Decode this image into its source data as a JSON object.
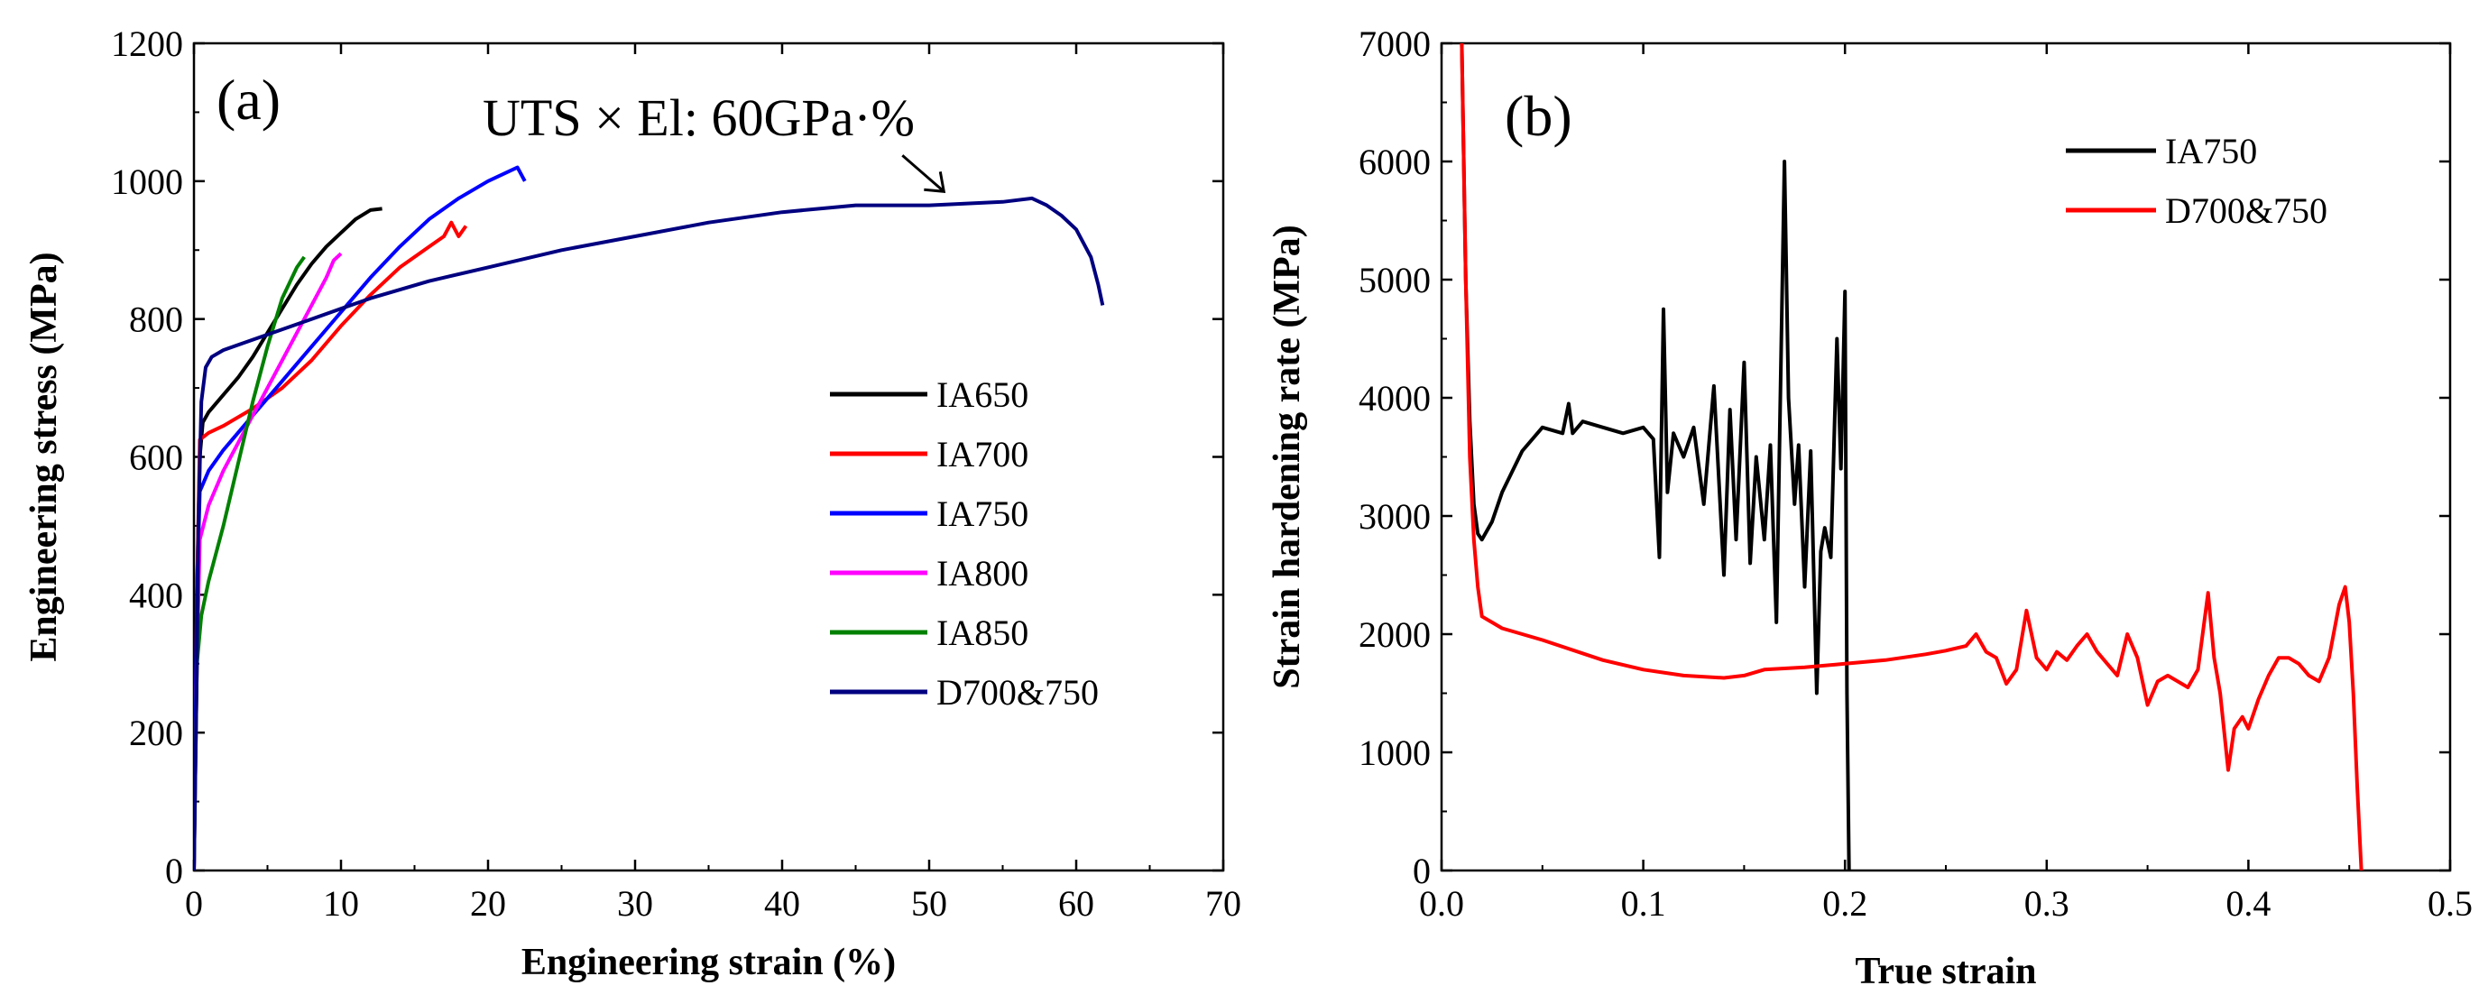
{
  "chart_data": [
    {
      "id": "a",
      "type": "line",
      "panel_label": "(a)",
      "xlabel": "Engineering strain (%)",
      "ylabel": "Engineering stress (MPa)",
      "xlim": [
        0,
        70
      ],
      "ylim": [
        0,
        1200
      ],
      "xticks": [
        0,
        10,
        20,
        30,
        40,
        50,
        60,
        70
      ],
      "yticks": [
        0,
        200,
        400,
        600,
        800,
        1000,
        1200
      ],
      "legend_position": "center-right",
      "annotation": {
        "text": "UTS × El: 60GPa·%",
        "points_to": [
          51,
          985
        ]
      },
      "series": [
        {
          "name": "IA650",
          "color": "#000000",
          "x": [
            0,
            0.2,
            0.4,
            0.6,
            1,
            2,
            3,
            4,
            5,
            6,
            7,
            8,
            9,
            10,
            11,
            12,
            12.8
          ],
          "y": [
            0,
            400,
            600,
            650,
            665,
            690,
            715,
            745,
            780,
            815,
            850,
            880,
            905,
            925,
            945,
            958,
            960
          ]
        },
        {
          "name": "IA700",
          "color": "#ff0000",
          "x": [
            0,
            0.2,
            0.4,
            1,
            2,
            4,
            6,
            8,
            10,
            12,
            14,
            16,
            17,
            17.5,
            18,
            18.5
          ],
          "y": [
            0,
            400,
            625,
            635,
            645,
            670,
            700,
            740,
            790,
            835,
            875,
            905,
            920,
            940,
            920,
            935
          ]
        },
        {
          "name": "IA750",
          "color": "#0000ff",
          "x": [
            0,
            0.2,
            0.4,
            1,
            2,
            4,
            6,
            8,
            10,
            12,
            14,
            16,
            18,
            20,
            21,
            22,
            22.5
          ],
          "y": [
            0,
            400,
            550,
            580,
            610,
            660,
            710,
            760,
            810,
            860,
            905,
            945,
            975,
            1000,
            1010,
            1020,
            1000
          ]
        },
        {
          "name": "IA800",
          "color": "#ff00ff",
          "x": [
            0,
            0.2,
            0.4,
            1,
            2,
            4,
            6,
            8,
            9,
            9.5,
            10
          ],
          "y": [
            0,
            300,
            480,
            530,
            580,
            660,
            740,
            820,
            860,
            885,
            895
          ]
        },
        {
          "name": "IA850",
          "color": "#008000",
          "x": [
            0,
            0.2,
            0.5,
            1,
            2,
            3,
            4,
            5,
            6,
            7,
            7.5
          ],
          "y": [
            0,
            300,
            370,
            420,
            500,
            590,
            680,
            760,
            830,
            875,
            890
          ]
        },
        {
          "name": "D700&750",
          "color": "#000080",
          "x": [
            0,
            0.2,
            0.3,
            0.5,
            0.8,
            1.2,
            2,
            4,
            8,
            12,
            16,
            20,
            25,
            30,
            35,
            40,
            45,
            50,
            55,
            57,
            58,
            59,
            60,
            61,
            61.5,
            61.8
          ],
          "y": [
            0,
            300,
            500,
            680,
            730,
            745,
            755,
            770,
            800,
            830,
            855,
            875,
            900,
            920,
            940,
            955,
            965,
            965,
            970,
            975,
            965,
            950,
            930,
            890,
            850,
            820
          ]
        }
      ]
    },
    {
      "id": "b",
      "type": "line",
      "panel_label": "(b)",
      "xlabel": "True strain",
      "ylabel": "Strain hardening rate (MPa)",
      "xlim": [
        0,
        0.5
      ],
      "ylim": [
        0,
        7000
      ],
      "xticks": [
        "0.0",
        "0.1",
        "0.2",
        "0.3",
        "0.4",
        "0.5"
      ],
      "xtick_values": [
        0,
        0.1,
        0.2,
        0.3,
        0.4,
        0.5
      ],
      "yticks": [
        0,
        1000,
        2000,
        3000,
        4000,
        5000,
        6000,
        7000
      ],
      "legend_position": "top-right",
      "series": [
        {
          "name": "IA750",
          "color": "#000000",
          "x": [
            0.01,
            0.012,
            0.014,
            0.016,
            0.018,
            0.02,
            0.025,
            0.03,
            0.04,
            0.05,
            0.06,
            0.063,
            0.065,
            0.07,
            0.08,
            0.09,
            0.1,
            0.105,
            0.108,
            0.11,
            0.112,
            0.115,
            0.12,
            0.125,
            0.13,
            0.135,
            0.14,
            0.143,
            0.146,
            0.15,
            0.153,
            0.156,
            0.16,
            0.163,
            0.166,
            0.17,
            0.172,
            0.175,
            0.177,
            0.18,
            0.183,
            0.186,
            0.188,
            0.19,
            0.193,
            0.196,
            0.198,
            0.2,
            0.201,
            0.202
          ],
          "y": [
            7000,
            5000,
            3800,
            3100,
            2850,
            2800,
            2950,
            3200,
            3550,
            3750,
            3700,
            3950,
            3700,
            3800,
            3750,
            3700,
            3750,
            3650,
            2650,
            4750,
            3200,
            3700,
            3500,
            3750,
            3100,
            4100,
            2500,
            3900,
            2800,
            4300,
            2600,
            3500,
            2800,
            3600,
            2100,
            6000,
            4000,
            3100,
            3600,
            2400,
            3550,
            1500,
            2700,
            2900,
            2650,
            4500,
            3400,
            4900,
            1500,
            0
          ]
        },
        {
          "name": "D700&750",
          "color": "#ff0000",
          "x": [
            0.01,
            0.012,
            0.014,
            0.016,
            0.018,
            0.02,
            0.025,
            0.03,
            0.05,
            0.08,
            0.1,
            0.12,
            0.14,
            0.15,
            0.16,
            0.18,
            0.2,
            0.22,
            0.24,
            0.25,
            0.26,
            0.265,
            0.27,
            0.275,
            0.28,
            0.285,
            0.29,
            0.295,
            0.3,
            0.305,
            0.31,
            0.315,
            0.32,
            0.325,
            0.33,
            0.335,
            0.34,
            0.345,
            0.35,
            0.355,
            0.36,
            0.365,
            0.37,
            0.375,
            0.38,
            0.383,
            0.386,
            0.39,
            0.393,
            0.397,
            0.4,
            0.405,
            0.41,
            0.415,
            0.42,
            0.425,
            0.43,
            0.435,
            0.44,
            0.445,
            0.448,
            0.45,
            0.452,
            0.454,
            0.456
          ],
          "y": [
            7000,
            5000,
            3500,
            2800,
            2400,
            2150,
            2100,
            2050,
            1950,
            1780,
            1700,
            1650,
            1630,
            1650,
            1700,
            1720,
            1750,
            1780,
            1830,
            1860,
            1900,
            2000,
            1850,
            1800,
            1580,
            1700,
            2200,
            1800,
            1700,
            1850,
            1780,
            1900,
            2000,
            1850,
            1750,
            1650,
            2000,
            1800,
            1400,
            1600,
            1650,
            1600,
            1550,
            1700,
            2350,
            1800,
            1500,
            850,
            1200,
            1300,
            1200,
            1450,
            1650,
            1800,
            1800,
            1750,
            1650,
            1600,
            1800,
            2250,
            2400,
            2100,
            1500,
            700,
            0
          ]
        }
      ]
    }
  ]
}
